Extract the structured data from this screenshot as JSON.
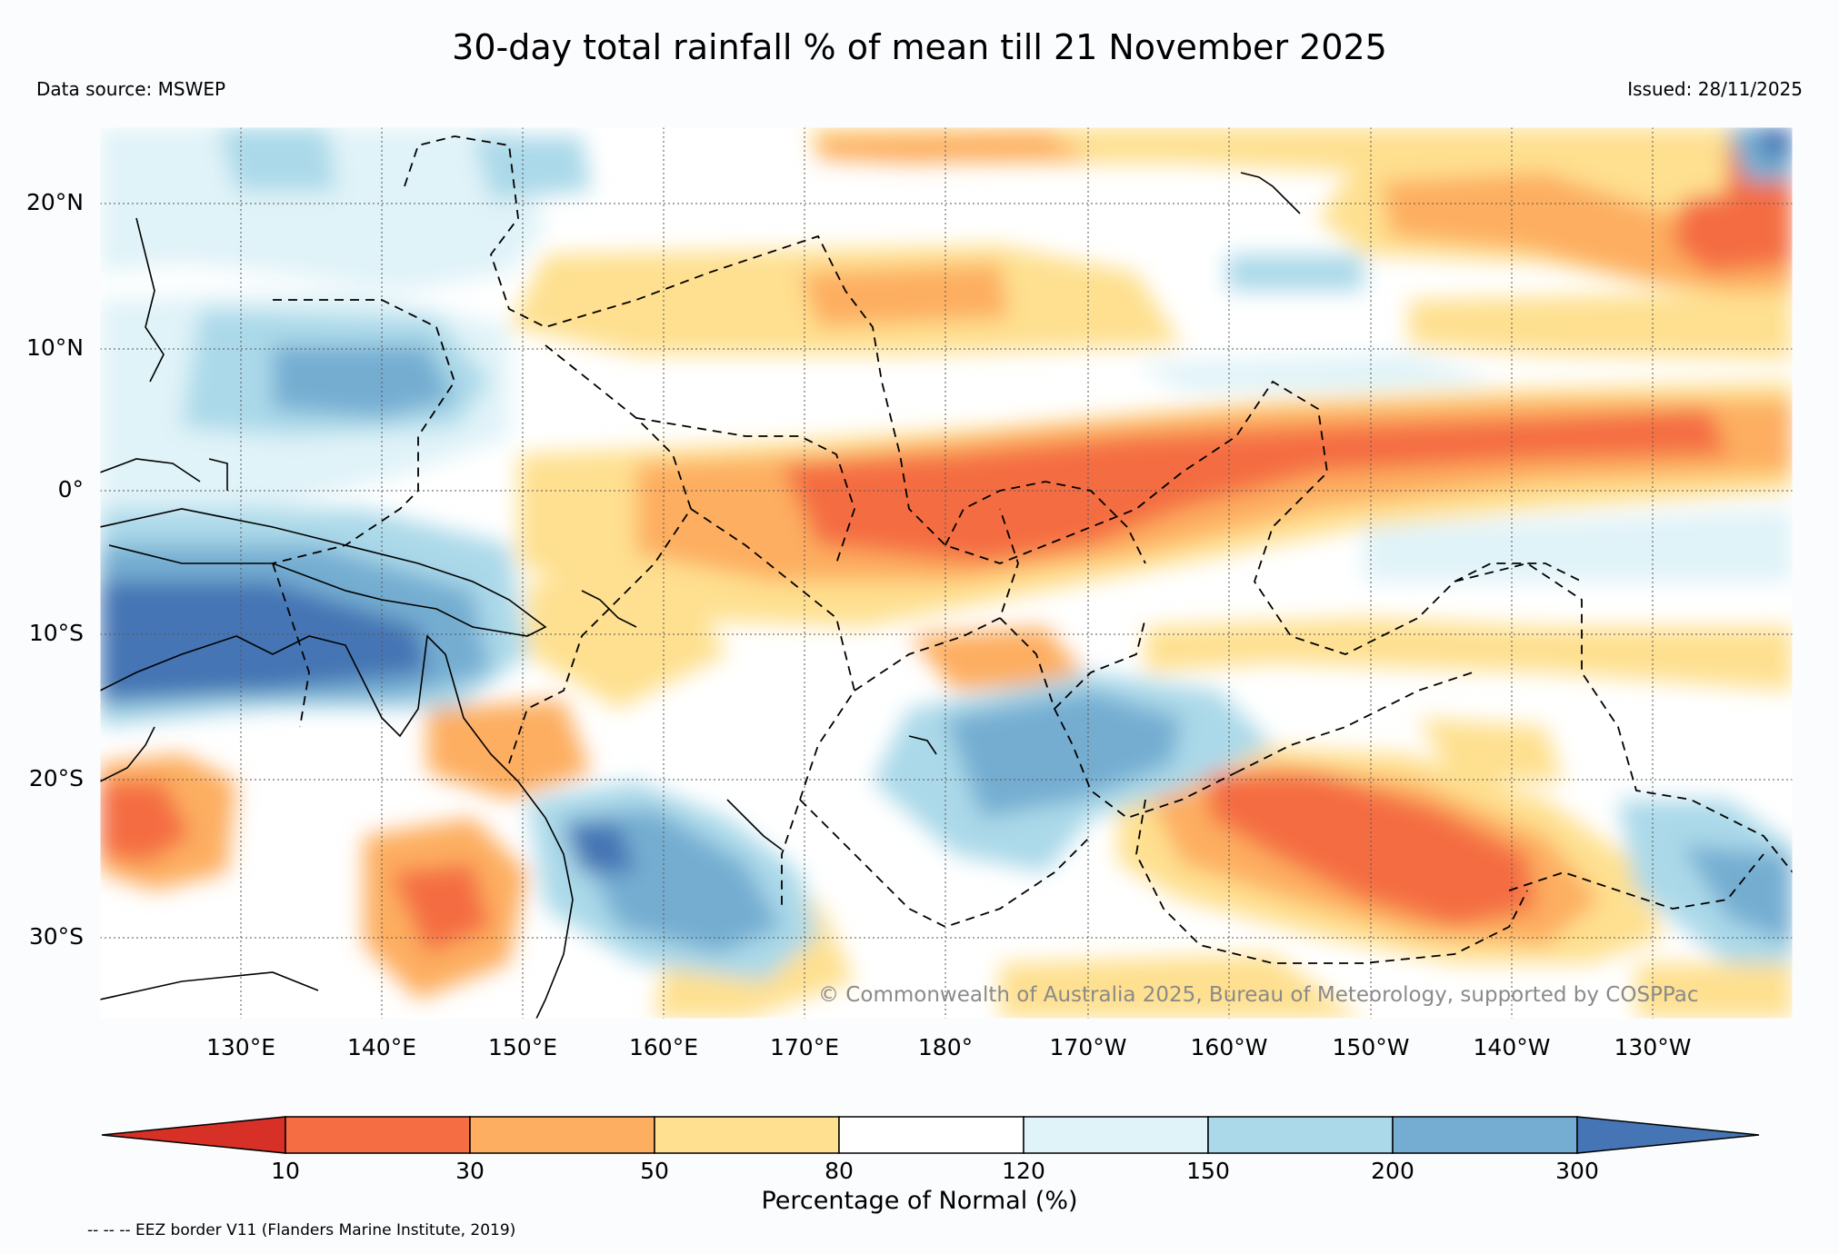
{
  "title": "30-day total rainfall % of mean till 21 November 2025",
  "data_source": "Data source: MSWEP",
  "issued": "Issued: 28/11/2025",
  "copyright": "© Commonwealth of Australia 2025, Bureau of Meteorology, supported by COSPPac",
  "lat_labels": [
    "20°N",
    "10°N",
    "0°",
    "10°S",
    "20°S",
    "30°S"
  ],
  "lon_labels": [
    "130°E",
    "140°E",
    "150°E",
    "160°E",
    "170°E",
    "180°",
    "170°W",
    "160°W",
    "150°W",
    "140°W",
    "130°W"
  ],
  "colorbar": {
    "title": "Percentage of Normal (%)",
    "ticks": [
      "10",
      "30",
      "50",
      "80",
      "120",
      "150",
      "200",
      "300"
    ],
    "colors": [
      "#d73027",
      "#f46d43",
      "#fdae61",
      "#fee090",
      "#ffffff",
      "#e0f3f8",
      "#abd9e9",
      "#74add1",
      "#4575b4"
    ]
  },
  "legend_note": "-- -- -- EEZ border V11 (Flanders Marine Institute, 2019)"
}
